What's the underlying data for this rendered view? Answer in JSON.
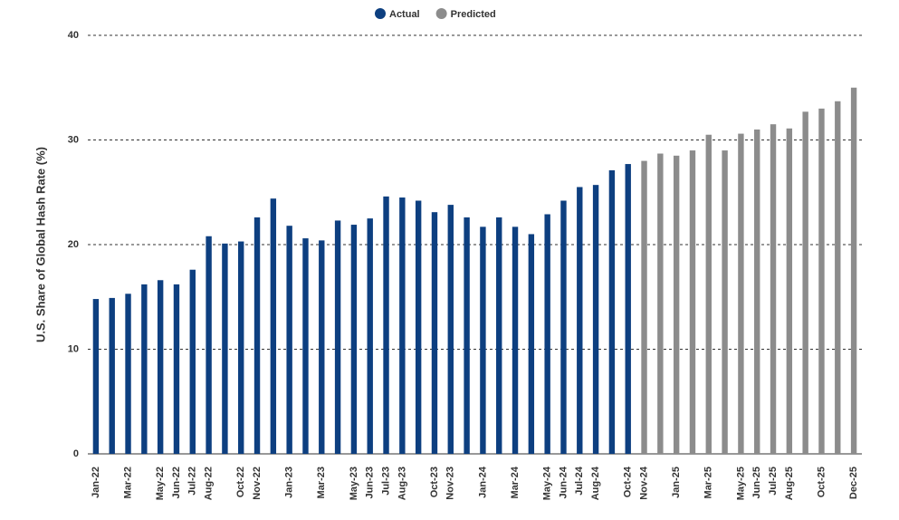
{
  "chart_data": {
    "type": "bar",
    "y_label": "U.S. Share of Global Hash Rate (%)",
    "categories": [
      "Jan-22",
      null,
      "Mar-22",
      null,
      "May-22",
      "Jun-22",
      "Jul-22",
      "Aug-22",
      null,
      "Oct-22",
      "Nov-22",
      null,
      "Jan-23",
      null,
      "Mar-23",
      null,
      "May-23",
      "Jun-23",
      "Jul-23",
      "Aug-23",
      null,
      "Oct-23",
      "Nov-23",
      null,
      "Jan-24",
      null,
      "Mar-24",
      null,
      "May-24",
      "Jun-24",
      "Jul-24",
      "Aug-24",
      null,
      "Oct-24",
      "Nov-24",
      null,
      "Jan-25",
      null,
      "Mar-25",
      null,
      "May-25",
      "Jun-25",
      "Jul-25",
      "Aug-25",
      null,
      "Oct-25",
      null,
      "Dec-25"
    ],
    "series": [
      {
        "name": "Actual",
        "color": "#0d3f80",
        "values": [
          14.8,
          14.9,
          15.3,
          16.2,
          16.6,
          16.2,
          17.6,
          20.8,
          20.1,
          20.3,
          22.6,
          24.4,
          21.8,
          20.6,
          20.4,
          22.3,
          21.9,
          22.5,
          24.6,
          24.5,
          24.2,
          23.1,
          23.8,
          22.6,
          21.7,
          22.6,
          21.7,
          21.0,
          22.9,
          24.2,
          25.5,
          25.7,
          27.1,
          27.7,
          null,
          null,
          null,
          null,
          null,
          null,
          null,
          null,
          null,
          null,
          null,
          null,
          null,
          null
        ]
      },
      {
        "name": "Predicted",
        "color": "#8c8c8c",
        "values": [
          null,
          null,
          null,
          null,
          null,
          null,
          null,
          null,
          null,
          null,
          null,
          null,
          null,
          null,
          null,
          null,
          null,
          null,
          null,
          null,
          null,
          null,
          null,
          null,
          null,
          null,
          null,
          null,
          null,
          null,
          null,
          null,
          null,
          null,
          28.0,
          28.7,
          28.5,
          29.0,
          30.5,
          29.0,
          30.6,
          31.0,
          31.5,
          31.1,
          32.7,
          33.0,
          33.7,
          35.0
        ]
      }
    ],
    "ylim": [
      0,
      40
    ],
    "yticks": [
      0,
      10,
      20,
      30,
      40
    ],
    "grid": true,
    "legend": "top"
  }
}
